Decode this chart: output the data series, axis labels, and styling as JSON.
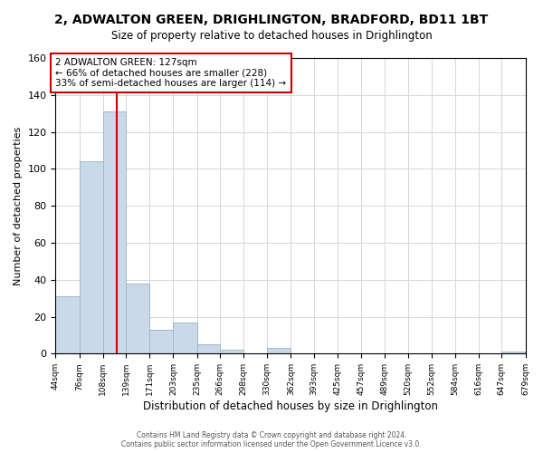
{
  "title_line1": "2, ADWALTON GREEN, DRIGHLINGTON, BRADFORD, BD11 1BT",
  "title_line2": "Size of property relative to detached houses in Drighlington",
  "xlabel": "Distribution of detached houses by size in Drighlington",
  "ylabel": "Number of detached properties",
  "footer_line1": "Contains HM Land Registry data © Crown copyright and database right 2024.",
  "footer_line2": "Contains public sector information licensed under the Open Government Licence v3.0.",
  "bin_edges": [
    44,
    76,
    108,
    139,
    171,
    203,
    235,
    266,
    298,
    330,
    362,
    393,
    425,
    457,
    489,
    520,
    552,
    584,
    616,
    647,
    679
  ],
  "bin_counts": [
    31,
    104,
    131,
    38,
    13,
    17,
    5,
    2,
    0,
    3,
    0,
    0,
    0,
    0,
    0,
    0,
    0,
    0,
    0,
    1
  ],
  "bar_color": "#c9d9e8",
  "bar_edge_color": "#a0b8cc",
  "vline_x": 127,
  "vline_color": "#cc0000",
  "annotation_title": "2 ADWALTON GREEN: 127sqm",
  "annotation_line2": "← 66% of detached houses are smaller (228)",
  "annotation_line3": "33% of semi-detached houses are larger (114) →",
  "annotation_box_color": "#cc0000",
  "annotation_bg": "white",
  "ylim": [
    0,
    160
  ],
  "xlim": [
    44,
    679
  ],
  "tick_labels": [
    "44sqm",
    "76sqm",
    "108sqm",
    "139sqm",
    "171sqm",
    "203sqm",
    "235sqm",
    "266sqm",
    "298sqm",
    "330sqm",
    "362sqm",
    "393sqm",
    "425sqm",
    "457sqm",
    "489sqm",
    "520sqm",
    "552sqm",
    "584sqm",
    "616sqm",
    "647sqm",
    "679sqm"
  ],
  "background_color": "#ffffff",
  "grid_color": "#d0d8e0"
}
